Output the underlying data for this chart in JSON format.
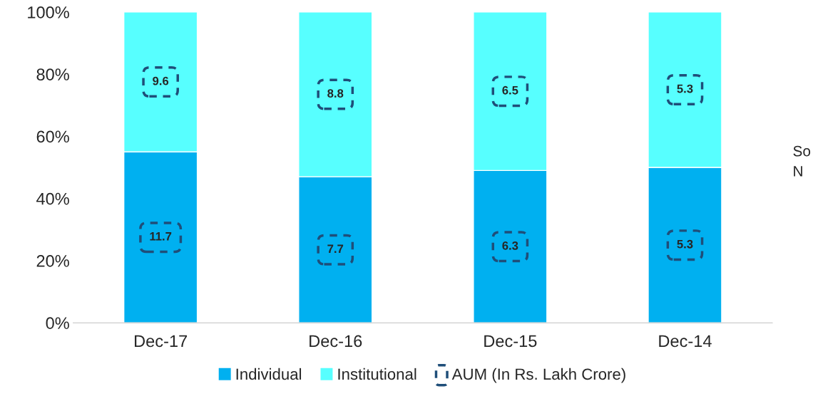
{
  "chart_data": {
    "type": "bar",
    "stacked": true,
    "categories": [
      "Dec-17",
      "Dec-16",
      "Dec-15",
      "Dec-14"
    ],
    "series": [
      {
        "name": "Individual",
        "color": "#00b0f0",
        "values": [
          55,
          47,
          49,
          50
        ]
      },
      {
        "name": "Institutional",
        "color": "#57ffff",
        "values": [
          45,
          53,
          51,
          50
        ]
      }
    ],
    "ylim": [
      0,
      100
    ],
    "yticks": [
      {
        "value": 0,
        "label": "0%"
      },
      {
        "value": 20,
        "label": "20%"
      },
      {
        "value": 40,
        "label": "40%"
      },
      {
        "value": 60,
        "label": "60%"
      },
      {
        "value": 80,
        "label": "80%"
      },
      {
        "value": 100,
        "label": "100%"
      }
    ],
    "grid": false,
    "legend": "bottom",
    "annotations": [
      "AUM (In Rs. Lakh Crore)",
      "So",
      "N",
      "9.6",
      "11.7",
      "8.8",
      "7.7",
      "6.5",
      "6.3",
      "5.3",
      "5.3"
    ]
  }
}
